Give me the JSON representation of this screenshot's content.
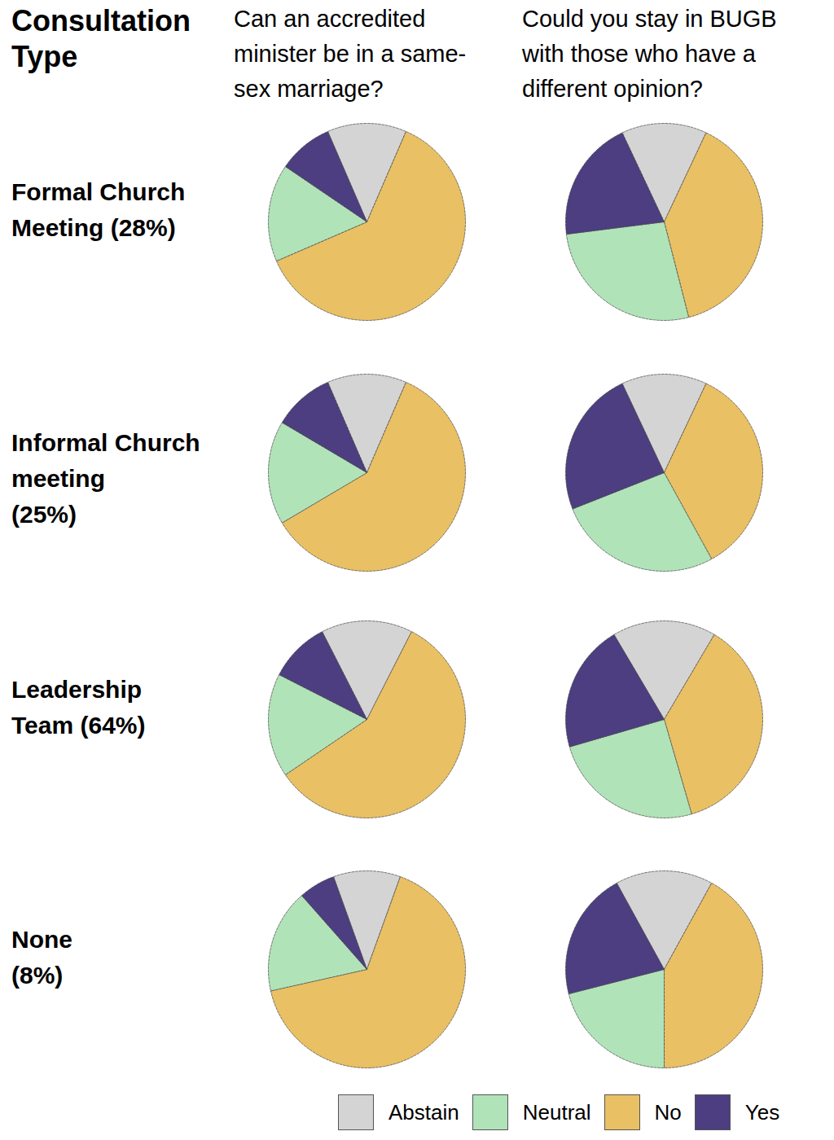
{
  "chart_data": {
    "type": "pie",
    "header": [
      "Consultation",
      "Type"
    ],
    "columns": [
      [
        "Can an accredited",
        "minister be in a same-",
        "sex marriage?"
      ],
      [
        "Could you stay in BUGB",
        "with those who have a",
        "different opinion?"
      ]
    ],
    "categories": [
      "Abstain",
      "Neutral",
      "No",
      "Yes"
    ],
    "colors": [
      "#d4d4d4",
      "#b1e3b9",
      "#e9c064",
      "#4c3e80"
    ],
    "legend": "bottom",
    "rows": [
      {
        "label": [
          "Formal Church",
          "Meeting (28%)"
        ],
        "values": [
          [
            13,
            16,
            62,
            9
          ],
          [
            14,
            27,
            39,
            20
          ]
        ]
      },
      {
        "label": [
          "Informal Church",
          "meeting",
          "(25%)"
        ],
        "values": [
          [
            13,
            17,
            60,
            10
          ],
          [
            14,
            27,
            35,
            24
          ]
        ]
      },
      {
        "label": [
          "Leadership",
          "Team (64%)"
        ],
        "values": [
          [
            15,
            17,
            58,
            10
          ],
          [
            17,
            25,
            37,
            21
          ]
        ]
      },
      {
        "label": [
          "None",
          "(8%)"
        ],
        "values": [
          [
            11,
            17,
            66,
            6
          ],
          [
            16,
            21,
            42,
            21
          ]
        ]
      }
    ]
  }
}
